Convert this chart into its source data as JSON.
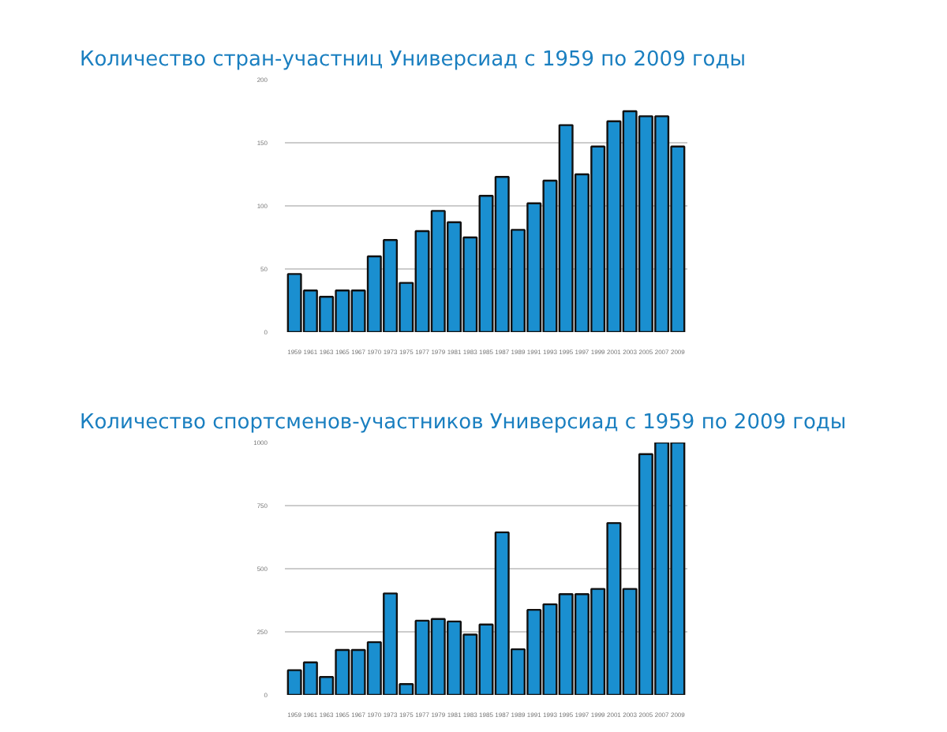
{
  "chart_data": [
    {
      "type": "bar",
      "title": "Количество стран-участниц Универсиад с 1959 по 2009 годы",
      "categories": [
        "1959",
        "1961",
        "1963",
        "1965",
        "1967",
        "1970",
        "1973",
        "1975",
        "1977",
        "1979",
        "1981",
        "1983",
        "1985",
        "1987",
        "1989",
        "1991",
        "1993",
        "1995",
        "1997",
        "1999",
        "2001",
        "2003",
        "2005",
        "2007",
        "2009"
      ],
      "values": [
        46,
        33,
        28,
        33,
        33,
        60,
        73,
        39,
        80,
        96,
        87,
        75,
        108,
        123,
        81,
        102,
        120,
        164,
        125,
        147,
        167,
        175,
        171,
        171,
        147
      ],
      "color": "#1a8fd0",
      "ylim": [
        0,
        200
      ],
      "yticks": [
        0,
        50,
        100,
        150,
        200
      ],
      "grid": "y"
    },
    {
      "type": "bar",
      "title": "Количество спортсменов-участников Универсиад с 1959 по 2009 годы",
      "categories": [
        "1959",
        "1961",
        "1963",
        "1965",
        "1967",
        "1970",
        "1973",
        "1975",
        "1977",
        "1979",
        "1981",
        "1983",
        "1985",
        "1987",
        "1989",
        "1991",
        "1993",
        "1995",
        "1997",
        "1999",
        "2001",
        "2003",
        "2005",
        "2007",
        "2009"
      ],
      "values": [
        98,
        129,
        71,
        178,
        178,
        209,
        402,
        43,
        294,
        301,
        291,
        239,
        279,
        644,
        181,
        337,
        359,
        399,
        399,
        420,
        681,
        420,
        954,
        1000,
        1000
      ],
      "color": "#1a8fd0",
      "ylim": [
        0,
        1000
      ],
      "yticks": [
        0,
        250,
        500,
        750,
        1000
      ],
      "grid": "y"
    }
  ]
}
